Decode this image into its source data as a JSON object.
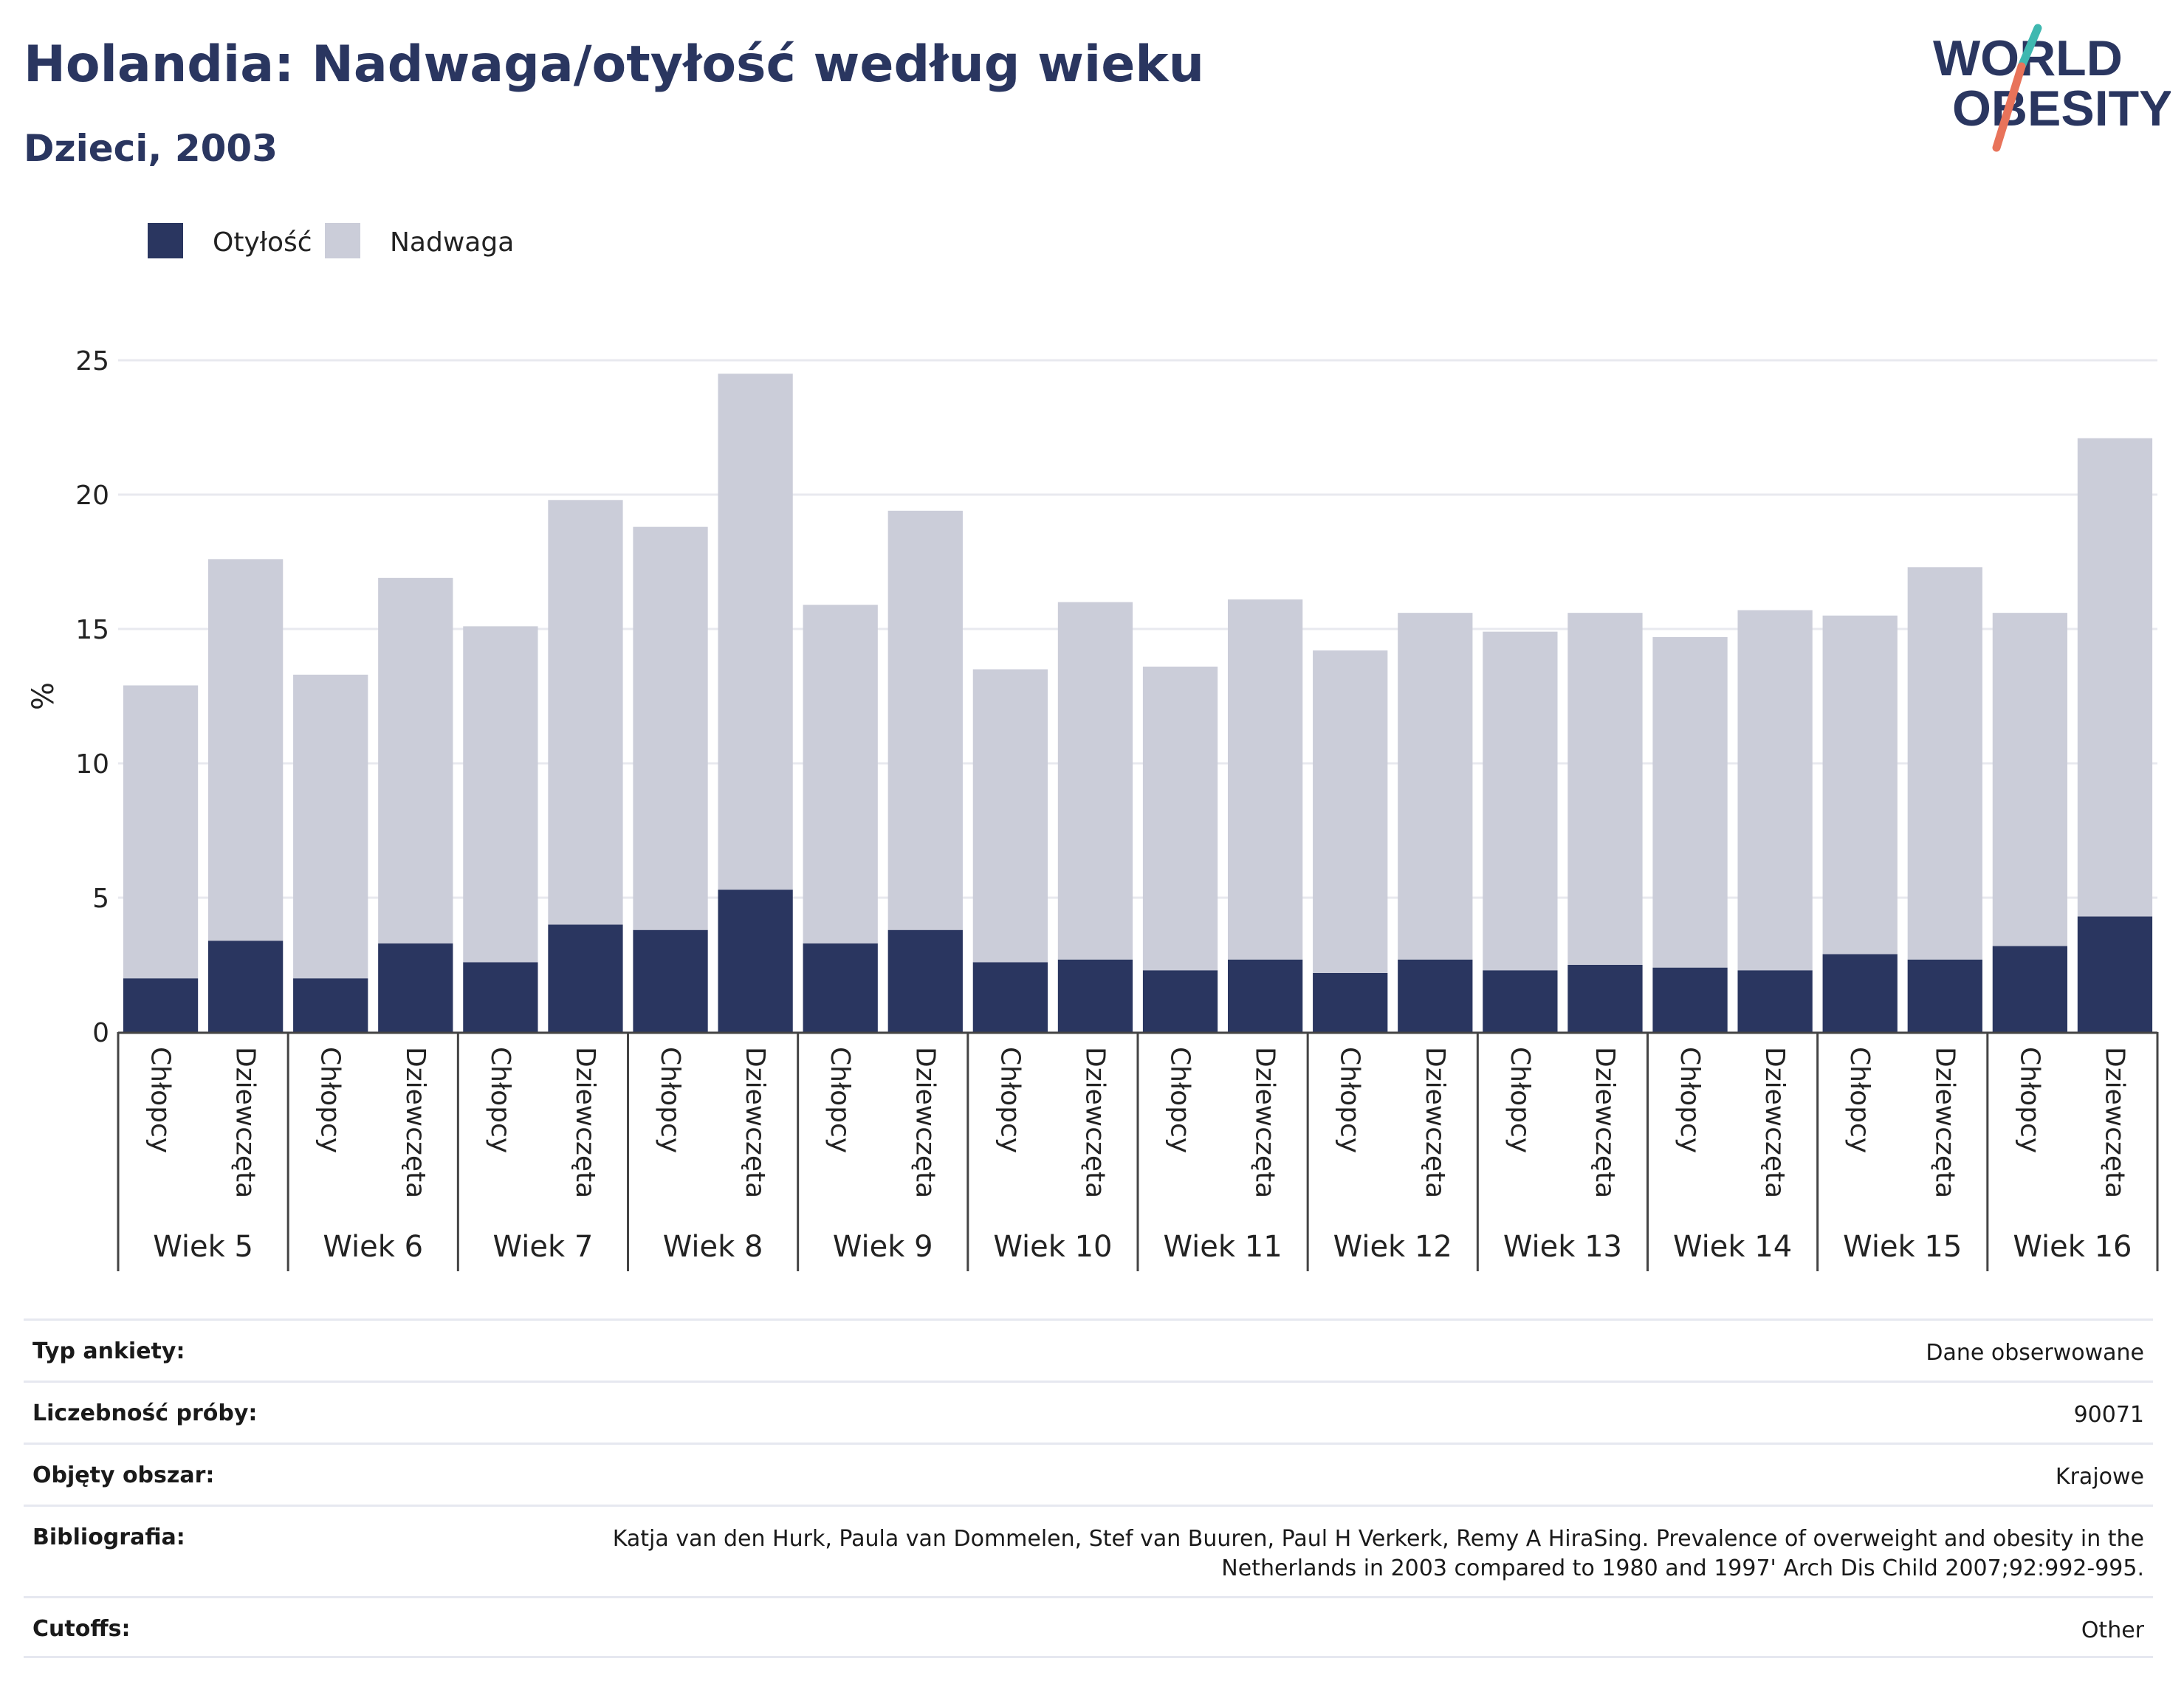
{
  "header": {
    "title": "Holandia: Nadwaga/otyłość według wieku",
    "subtitle": "Dzieci, 2003"
  },
  "logo": {
    "line1": "WORLD",
    "line2": "OBESITY",
    "colors": {
      "text": "#2a3660",
      "slash_top": "#3fb8b0",
      "slash_bottom": "#e8735a"
    }
  },
  "chart_data": {
    "type": "bar",
    "stacked": true,
    "ylabel": "%",
    "ylim": [
      0,
      25
    ],
    "yticks": [
      0,
      5,
      10,
      15,
      20,
      25
    ],
    "grid": true,
    "legend_position": "top-left",
    "groups": [
      "Wiek 5",
      "Wiek 6",
      "Wiek 7",
      "Wiek 8",
      "Wiek 9",
      "Wiek 10",
      "Wiek 11",
      "Wiek 12",
      "Wiek 13",
      "Wiek 14",
      "Wiek 15",
      "Wiek 16"
    ],
    "subcategories": [
      "Chłopcy",
      "Dziewczęta"
    ],
    "series": [
      {
        "name": "Otyłość",
        "color": "#2a3660",
        "values": [
          2.0,
          3.4,
          2.0,
          3.3,
          2.6,
          4.0,
          3.8,
          5.3,
          3.3,
          3.8,
          2.6,
          2.7,
          2.3,
          2.7,
          2.2,
          2.7,
          2.3,
          2.5,
          2.4,
          2.3,
          2.9,
          2.7,
          3.2,
          4.3
        ]
      },
      {
        "name": "Nadwaga",
        "color": "#cbcdd9",
        "values": [
          10.9,
          14.2,
          11.3,
          13.6,
          12.5,
          15.8,
          15.0,
          19.2,
          12.6,
          15.6,
          10.9,
          13.3,
          11.3,
          13.4,
          12.0,
          12.9,
          12.6,
          13.1,
          12.3,
          13.4,
          12.6,
          14.6,
          12.4,
          17.8
        ]
      }
    ]
  },
  "info": [
    {
      "label": "Typ ankiety:",
      "value": "Dane obserwowane"
    },
    {
      "label": "Liczebność próby:",
      "value": "90071"
    },
    {
      "label": "Objęty obszar:",
      "value": "Krajowe"
    },
    {
      "label": "Bibliografia:",
      "value": "Katja van den Hurk, Paula van Dommelen, Stef van Buuren, Paul H Verkerk, Remy A HiraSing. Prevalence of overweight and obesity in the Netherlands in 2003 compared to 1980 and 1997' Arch Dis Child 2007;92:992-995."
    },
    {
      "label": "Cutoffs:",
      "value": "Other"
    }
  ]
}
